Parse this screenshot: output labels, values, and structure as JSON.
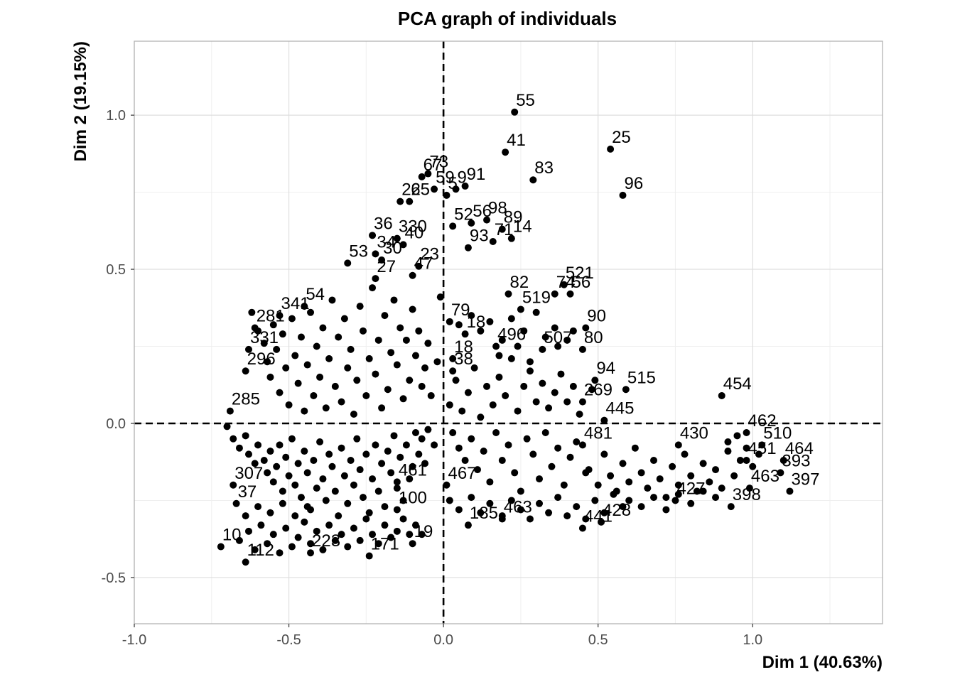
{
  "chart_data": {
    "type": "scatter",
    "title": "PCA graph of individuals",
    "xlabel": "Dim 1 (40.63%)",
    "ylabel": "Dim 2 (19.15%)",
    "xlim": [
      -1.0,
      1.42
    ],
    "ylim": [
      -0.65,
      1.24
    ],
    "x_ticks": [
      -1.0,
      -0.5,
      0.0,
      0.5,
      1.0
    ],
    "x_tick_labels": [
      "-1.0",
      "-0.5",
      "0.0",
      "0.5",
      "1.0"
    ],
    "y_ticks": [
      -0.5,
      0.0,
      0.5,
      1.0
    ],
    "y_tick_labels": [
      "-0.5",
      "0.0",
      "0.5",
      "1.0"
    ],
    "grid": true,
    "reference_lines": {
      "x": 0,
      "y": 0,
      "style": "dashed"
    },
    "point_color": "#000000",
    "points": [
      {
        "label": "55",
        "x": 0.23,
        "y": 1.01
      },
      {
        "label": "25",
        "x": 0.54,
        "y": 0.89
      },
      {
        "label": "41",
        "x": 0.2,
        "y": 0.88
      },
      {
        "label": "83",
        "x": 0.29,
        "y": 0.79
      },
      {
        "label": "96",
        "x": 0.58,
        "y": 0.74
      },
      {
        "label": "67",
        "x": -0.07,
        "y": 0.8
      },
      {
        "label": "73",
        "x": -0.05,
        "y": 0.81
      },
      {
        "label": "59",
        "x": -0.03,
        "y": 0.76
      },
      {
        "label": "5",
        "x": 0.01,
        "y": 0.74
      },
      {
        "label": "9",
        "x": 0.04,
        "y": 0.76
      },
      {
        "label": "91",
        "x": 0.07,
        "y": 0.77
      },
      {
        "label": "22",
        "x": -0.14,
        "y": 0.72
      },
      {
        "label": "65",
        "x": -0.11,
        "y": 0.72
      },
      {
        "label": "98",
        "x": 0.14,
        "y": 0.66
      },
      {
        "label": "52",
        "x": 0.03,
        "y": 0.64
      },
      {
        "label": "56",
        "x": 0.09,
        "y": 0.65
      },
      {
        "label": "89",
        "x": 0.19,
        "y": 0.63
      },
      {
        "label": "14",
        "x": 0.22,
        "y": 0.6
      },
      {
        "label": "93",
        "x": 0.08,
        "y": 0.57
      },
      {
        "label": "71",
        "x": 0.16,
        "y": 0.59
      },
      {
        "label": "36",
        "x": -0.23,
        "y": 0.61
      },
      {
        "label": "330",
        "x": -0.15,
        "y": 0.6
      },
      {
        "label": "40",
        "x": -0.13,
        "y": 0.58
      },
      {
        "label": "53",
        "x": -0.31,
        "y": 0.52
      },
      {
        "label": "34",
        "x": -0.22,
        "y": 0.55
      },
      {
        "label": "30",
        "x": -0.2,
        "y": 0.53
      },
      {
        "label": "23",
        "x": -0.08,
        "y": 0.51
      },
      {
        "label": "27",
        "x": -0.22,
        "y": 0.47
      },
      {
        "label": "47",
        "x": -0.1,
        "y": 0.48
      },
      {
        "label": "82",
        "x": 0.21,
        "y": 0.42
      },
      {
        "label": "521",
        "x": 0.39,
        "y": 0.45
      },
      {
        "label": "74",
        "x": 0.36,
        "y": 0.42
      },
      {
        "label": "56",
        "x": 0.41,
        "y": 0.42
      },
      {
        "label": "341",
        "x": -0.53,
        "y": 0.35
      },
      {
        "label": "54",
        "x": -0.45,
        "y": 0.38
      },
      {
        "label": "519",
        "x": 0.25,
        "y": 0.37
      },
      {
        "label": "79",
        "x": 0.02,
        "y": 0.33
      },
      {
        "label": "90",
        "x": 0.46,
        "y": 0.31
      },
      {
        "label": "281",
        "x": -0.61,
        "y": 0.31
      },
      {
        "label": "18",
        "x": 0.07,
        "y": 0.29
      },
      {
        "label": "80",
        "x": 0.45,
        "y": 0.24
      },
      {
        "label": "496",
        "x": 0.17,
        "y": 0.25
      },
      {
        "label": "507",
        "x": 0.32,
        "y": 0.24
      },
      {
        "label": "331",
        "x": -0.63,
        "y": 0.24
      },
      {
        "label": "18",
        "x": 0.03,
        "y": 0.21
      },
      {
        "label": "38",
        "x": 0.03,
        "y": 0.17
      },
      {
        "label": "296",
        "x": -0.64,
        "y": 0.17
      },
      {
        "label": "94",
        "x": 0.49,
        "y": 0.14
      },
      {
        "label": "515",
        "x": 0.59,
        "y": 0.11
      },
      {
        "label": "454",
        "x": 0.9,
        "y": 0.09
      },
      {
        "label": "285",
        "x": -0.69,
        "y": 0.04
      },
      {
        "label": "269",
        "x": 0.45,
        "y": 0.07
      },
      {
        "label": "445",
        "x": 0.52,
        "y": 0.01
      },
      {
        "label": "462",
        "x": 0.98,
        "y": -0.03
      },
      {
        "label": "510",
        "x": 1.03,
        "y": -0.07
      },
      {
        "label": "451",
        "x": 0.98,
        "y": -0.12
      },
      {
        "label": "464",
        "x": 1.1,
        "y": -0.12
      },
      {
        "label": "393",
        "x": 1.09,
        "y": -0.16
      },
      {
        "label": "397",
        "x": 1.12,
        "y": -0.22
      },
      {
        "label": "463",
        "x": 0.99,
        "y": -0.21
      },
      {
        "label": "398",
        "x": 0.93,
        "y": -0.27
      },
      {
        "label": "427",
        "x": 0.75,
        "y": -0.25
      },
      {
        "label": "481",
        "x": 0.45,
        "y": -0.07
      },
      {
        "label": "430",
        "x": 0.76,
        "y": -0.07
      },
      {
        "label": "307",
        "x": -0.68,
        "y": -0.2
      },
      {
        "label": "37",
        "x": -0.67,
        "y": -0.26
      },
      {
        "label": "10",
        "x": -0.72,
        "y": -0.4
      },
      {
        "label": "112",
        "x": -0.64,
        "y": -0.45
      },
      {
        "label": "223",
        "x": -0.43,
        "y": -0.42
      },
      {
        "label": "171",
        "x": -0.24,
        "y": -0.43
      },
      {
        "label": "100",
        "x": -0.15,
        "y": -0.28
      },
      {
        "label": "19",
        "x": -0.1,
        "y": -0.39
      },
      {
        "label": "461",
        "x": -0.15,
        "y": -0.19
      },
      {
        "label": "467",
        "x": 0.01,
        "y": -0.2
      },
      {
        "label": "463",
        "x": 0.19,
        "y": -0.31
      },
      {
        "label": "185",
        "x": 0.08,
        "y": -0.33
      },
      {
        "label": "441",
        "x": 0.45,
        "y": -0.34
      },
      {
        "label": "428",
        "x": 0.51,
        "y": -0.32
      }
    ],
    "unlabeled_points": [
      [
        -0.7,
        -0.01
      ],
      [
        -0.68,
        -0.05
      ],
      [
        -0.66,
        -0.08
      ],
      [
        -0.64,
        -0.04
      ],
      [
        -0.63,
        -0.1
      ],
      [
        -0.61,
        -0.13
      ],
      [
        -0.6,
        -0.07
      ],
      [
        -0.58,
        -0.12
      ],
      [
        -0.57,
        -0.16
      ],
      [
        -0.56,
        -0.09
      ],
      [
        -0.55,
        -0.19
      ],
      [
        -0.54,
        -0.14
      ],
      [
        -0.53,
        -0.07
      ],
      [
        -0.52,
        -0.22
      ],
      [
        -0.51,
        -0.11
      ],
      [
        -0.5,
        -0.17
      ],
      [
        -0.49,
        -0.05
      ],
      [
        -0.48,
        -0.2
      ],
      [
        -0.47,
        -0.13
      ],
      [
        -0.46,
        -0.24
      ],
      [
        -0.45,
        -0.09
      ],
      [
        -0.44,
        -0.16
      ],
      [
        -0.43,
        -0.28
      ],
      [
        -0.42,
        -0.12
      ],
      [
        -0.41,
        -0.21
      ],
      [
        -0.4,
        -0.06
      ],
      [
        -0.39,
        -0.18
      ],
      [
        -0.38,
        -0.25
      ],
      [
        -0.37,
        -0.1
      ],
      [
        -0.36,
        -0.14
      ],
      [
        -0.35,
        -0.22
      ],
      [
        -0.34,
        -0.3
      ],
      [
        -0.33,
        -0.08
      ],
      [
        -0.32,
        -0.17
      ],
      [
        -0.31,
        -0.26
      ],
      [
        -0.3,
        -0.12
      ],
      [
        -0.29,
        -0.2
      ],
      [
        -0.28,
        -0.05
      ],
      [
        -0.27,
        -0.15
      ],
      [
        -0.26,
        -0.24
      ],
      [
        -0.25,
        -0.1
      ],
      [
        -0.24,
        -0.29
      ],
      [
        -0.23,
        -0.18
      ],
      [
        -0.22,
        -0.07
      ],
      [
        -0.21,
        -0.22
      ],
      [
        -0.2,
        -0.13
      ],
      [
        -0.19,
        -0.27
      ],
      [
        -0.18,
        -0.09
      ],
      [
        -0.17,
        -0.16
      ],
      [
        -0.16,
        -0.04
      ],
      [
        -0.15,
        -0.21
      ],
      [
        -0.14,
        -0.11
      ],
      [
        -0.13,
        -0.25
      ],
      [
        -0.12,
        -0.07
      ],
      [
        -0.11,
        -0.18
      ],
      [
        -0.1,
        -0.14
      ],
      [
        -0.09,
        -0.03
      ],
      [
        -0.08,
        -0.1
      ],
      [
        -0.07,
        -0.05
      ],
      [
        -0.06,
        -0.13
      ],
      [
        -0.05,
        -0.02
      ],
      [
        -0.03,
        -0.07
      ],
      [
        -0.66,
        -0.38
      ],
      [
        -0.63,
        -0.35
      ],
      [
        -0.61,
        -0.41
      ],
      [
        -0.59,
        -0.33
      ],
      [
        -0.57,
        -0.39
      ],
      [
        -0.55,
        -0.36
      ],
      [
        -0.53,
        -0.42
      ],
      [
        -0.51,
        -0.34
      ],
      [
        -0.49,
        -0.4
      ],
      [
        -0.47,
        -0.37
      ],
      [
        -0.45,
        -0.32
      ],
      [
        -0.43,
        -0.39
      ],
      [
        -0.41,
        -0.35
      ],
      [
        -0.39,
        -0.41
      ],
      [
        -0.37,
        -0.33
      ],
      [
        -0.35,
        -0.38
      ],
      [
        -0.33,
        -0.36
      ],
      [
        -0.31,
        -0.4
      ],
      [
        -0.29,
        -0.34
      ],
      [
        -0.27,
        -0.38
      ],
      [
        -0.25,
        -0.31
      ],
      [
        -0.23,
        -0.36
      ],
      [
        -0.21,
        -0.39
      ],
      [
        -0.19,
        -0.33
      ],
      [
        -0.17,
        -0.37
      ],
      [
        -0.15,
        -0.35
      ],
      [
        -0.13,
        -0.31
      ],
      [
        -0.11,
        -0.36
      ],
      [
        -0.09,
        -0.33
      ],
      [
        -0.07,
        -0.36
      ],
      [
        -0.64,
        -0.3
      ],
      [
        -0.6,
        -0.27
      ],
      [
        -0.56,
        -0.29
      ],
      [
        -0.52,
        -0.26
      ],
      [
        -0.48,
        -0.3
      ],
      [
        -0.44,
        -0.27
      ],
      [
        -0.62,
        0.36
      ],
      [
        -0.6,
        0.3
      ],
      [
        -0.58,
        0.26
      ],
      [
        -0.57,
        0.2
      ],
      [
        -0.56,
        0.15
      ],
      [
        -0.55,
        0.32
      ],
      [
        -0.54,
        0.24
      ],
      [
        -0.53,
        0.1
      ],
      [
        -0.52,
        0.29
      ],
      [
        -0.51,
        0.18
      ],
      [
        -0.5,
        0.06
      ],
      [
        -0.49,
        0.34
      ],
      [
        -0.48,
        0.22
      ],
      [
        -0.47,
        0.13
      ],
      [
        -0.46,
        0.28
      ],
      [
        -0.45,
        0.04
      ],
      [
        -0.44,
        0.19
      ],
      [
        -0.43,
        0.36
      ],
      [
        -0.42,
        0.09
      ],
      [
        -0.41,
        0.25
      ],
      [
        -0.4,
        0.15
      ],
      [
        -0.39,
        0.31
      ],
      [
        -0.38,
        0.05
      ],
      [
        -0.37,
        0.21
      ],
      [
        -0.36,
        0.4
      ],
      [
        -0.35,
        0.12
      ],
      [
        -0.34,
        0.28
      ],
      [
        -0.33,
        0.07
      ],
      [
        -0.32,
        0.34
      ],
      [
        -0.31,
        0.18
      ],
      [
        -0.3,
        0.24
      ],
      [
        -0.29,
        0.03
      ],
      [
        -0.28,
        0.14
      ],
      [
        -0.27,
        0.38
      ],
      [
        -0.26,
        0.3
      ],
      [
        -0.25,
        0.09
      ],
      [
        -0.24,
        0.21
      ],
      [
        -0.23,
        0.44
      ],
      [
        -0.22,
        0.16
      ],
      [
        -0.21,
        0.27
      ],
      [
        -0.2,
        0.05
      ],
      [
        -0.19,
        0.35
      ],
      [
        -0.18,
        0.11
      ],
      [
        -0.17,
        0.23
      ],
      [
        -0.16,
        0.4
      ],
      [
        -0.15,
        0.19
      ],
      [
        -0.14,
        0.31
      ],
      [
        -0.13,
        0.08
      ],
      [
        -0.12,
        0.27
      ],
      [
        -0.11,
        0.14
      ],
      [
        -0.1,
        0.37
      ],
      [
        -0.09,
        0.22
      ],
      [
        -0.08,
        0.3
      ],
      [
        -0.07,
        0.12
      ],
      [
        -0.06,
        0.18
      ],
      [
        -0.05,
        0.26
      ],
      [
        -0.04,
        0.09
      ],
      [
        -0.02,
        0.2
      ],
      [
        -0.01,
        0.41
      ],
      [
        0.02,
        0.06
      ],
      [
        0.03,
        -0.03
      ],
      [
        0.04,
        0.14
      ],
      [
        0.05,
        -0.08
      ],
      [
        0.06,
        0.04
      ],
      [
        0.07,
        -0.12
      ],
      [
        0.08,
        0.1
      ],
      [
        0.09,
        -0.05
      ],
      [
        0.1,
        0.18
      ],
      [
        0.11,
        -0.15
      ],
      [
        0.12,
        0.02
      ],
      [
        0.13,
        -0.09
      ],
      [
        0.14,
        0.12
      ],
      [
        0.15,
        -0.19
      ],
      [
        0.16,
        0.06
      ],
      [
        0.17,
        -0.03
      ],
      [
        0.18,
        0.15
      ],
      [
        0.19,
        -0.12
      ],
      [
        0.2,
        0.09
      ],
      [
        0.21,
        -0.07
      ],
      [
        0.22,
        0.21
      ],
      [
        0.23,
        -0.16
      ],
      [
        0.24,
        0.04
      ],
      [
        0.25,
        -0.22
      ],
      [
        0.26,
        0.12
      ],
      [
        0.27,
        -0.05
      ],
      [
        0.28,
        0.17
      ],
      [
        0.29,
        -0.1
      ],
      [
        0.3,
        0.07
      ],
      [
        0.31,
        -0.18
      ],
      [
        0.32,
        0.13
      ],
      [
        0.33,
        -0.03
      ],
      [
        0.34,
        0.05
      ],
      [
        0.35,
        -0.14
      ],
      [
        0.36,
        0.1
      ],
      [
        0.37,
        -0.08
      ],
      [
        0.38,
        0.16
      ],
      [
        0.39,
        -0.2
      ],
      [
        0.4,
        0.07
      ],
      [
        0.41,
        -0.11
      ],
      [
        0.42,
        0.12
      ],
      [
        0.43,
        -0.06
      ],
      [
        0.44,
        0.03
      ],
      [
        0.46,
        -0.16
      ],
      [
        0.48,
        0.11
      ],
      [
        0.12,
        0.3
      ],
      [
        0.15,
        0.33
      ],
      [
        0.19,
        0.27
      ],
      [
        0.22,
        0.34
      ],
      [
        0.26,
        0.3
      ],
      [
        0.3,
        0.36
      ],
      [
        0.33,
        0.28
      ],
      [
        0.36,
        0.31
      ],
      [
        0.4,
        0.27
      ],
      [
        0.18,
        0.22
      ],
      [
        0.24,
        0.25
      ],
      [
        0.05,
        0.32
      ],
      [
        0.09,
        0.35
      ],
      [
        0.37,
        0.25
      ],
      [
        0.42,
        0.3
      ],
      [
        0.28,
        0.2
      ],
      [
        0.02,
        -0.25
      ],
      [
        0.05,
        -0.28
      ],
      [
        0.09,
        -0.24
      ],
      [
        0.12,
        -0.29
      ],
      [
        0.15,
        -0.26
      ],
      [
        0.19,
        -0.3
      ],
      [
        0.22,
        -0.25
      ],
      [
        0.25,
        -0.28
      ],
      [
        0.28,
        -0.31
      ],
      [
        0.31,
        -0.26
      ],
      [
        0.34,
        -0.29
      ],
      [
        0.37,
        -0.24
      ],
      [
        0.4,
        -0.3
      ],
      [
        0.43,
        -0.27
      ],
      [
        0.46,
        -0.31
      ],
      [
        0.49,
        -0.25
      ],
      [
        0.52,
        -0.29
      ],
      [
        0.55,
        -0.23
      ],
      [
        0.58,
        -0.27
      ],
      [
        0.47,
        -0.15
      ],
      [
        0.5,
        -0.2
      ],
      [
        0.52,
        -0.1
      ],
      [
        0.54,
        -0.17
      ],
      [
        0.56,
        -0.22
      ],
      [
        0.58,
        -0.13
      ],
      [
        0.6,
        -0.19
      ],
      [
        0.62,
        -0.08
      ],
      [
        0.64,
        -0.16
      ],
      [
        0.66,
        -0.21
      ],
      [
        0.68,
        -0.12
      ],
      [
        0.7,
        -0.18
      ],
      [
        0.72,
        -0.24
      ],
      [
        0.74,
        -0.14
      ],
      [
        0.76,
        -0.2
      ],
      [
        0.78,
        -0.1
      ],
      [
        0.8,
        -0.17
      ],
      [
        0.82,
        -0.22
      ],
      [
        0.84,
        -0.13
      ],
      [
        0.86,
        -0.19
      ],
      [
        0.88,
        -0.15
      ],
      [
        0.9,
        -0.21
      ],
      [
        0.92,
        -0.09
      ],
      [
        0.94,
        -0.17
      ],
      [
        0.96,
        -0.12
      ],
      [
        0.98,
        -0.08
      ],
      [
        1.0,
        -0.14
      ],
      [
        0.6,
        -0.25
      ],
      [
        0.64,
        -0.27
      ],
      [
        0.68,
        -0.24
      ],
      [
        0.72,
        -0.28
      ],
      [
        0.76,
        -0.23
      ],
      [
        0.8,
        -0.26
      ],
      [
        0.84,
        -0.22
      ],
      [
        0.88,
        -0.24
      ],
      [
        0.92,
        -0.06
      ],
      [
        0.95,
        -0.04
      ],
      [
        1.02,
        -0.1
      ]
    ]
  }
}
